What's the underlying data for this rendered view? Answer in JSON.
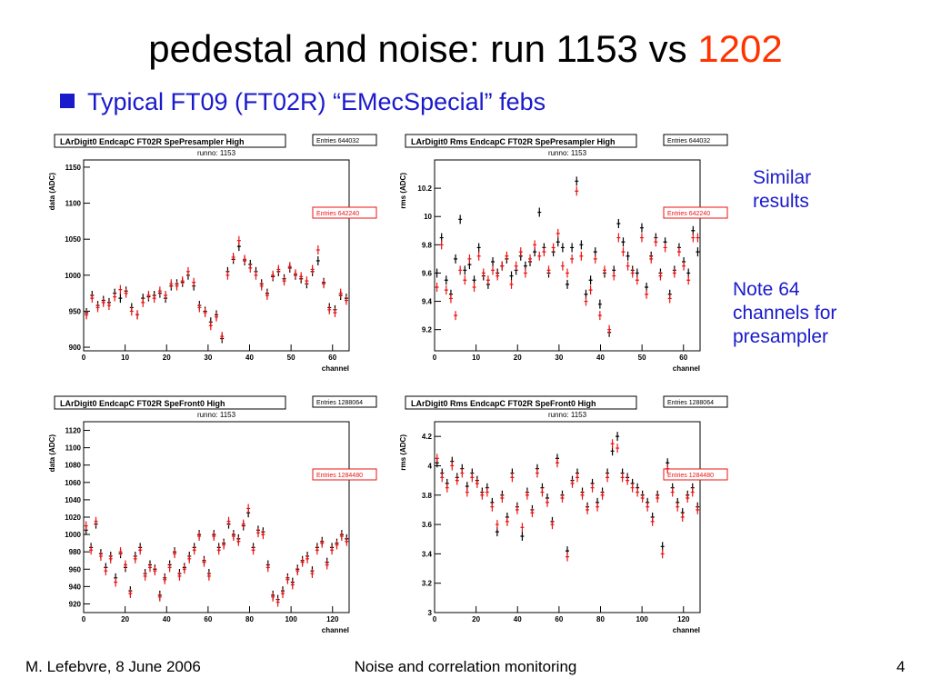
{
  "slide": {
    "title_main": "pedestal and noise: run 1153 vs",
    "title_highlight": "1202",
    "bullet": "Typical FT09 (FT02R) “EMecSpecial” febs",
    "note1_line1": "Similar",
    "note1_line2": "results",
    "note2_line1": "Note 64",
    "note2_line2": "channels for",
    "note2_line3": "presampler",
    "footer_left": "M. Lefebvre, 8 June 2006",
    "footer_center": "Noise and correlation monitoring",
    "footer_right": "4"
  },
  "colors": {
    "title_highlight": "#ff3300",
    "bullet": "#1a1acc",
    "series_1153": "#000000",
    "series_1202": "#ee1111"
  },
  "chart_data": [
    {
      "type": "scatter",
      "title": "LArDigit0 EndcapC FT02R SpePresampler High",
      "subtitle": "runno: 1153",
      "entries_black": "Entries  644032",
      "entries_red": "Entries  642240",
      "xlabel": "channel",
      "ylabel": "data (ADC)",
      "xlim": [
        0,
        64
      ],
      "ylim": [
        895,
        1160
      ],
      "xticks": [
        0,
        10,
        20,
        30,
        40,
        50,
        60
      ],
      "yticks": [
        900,
        950,
        1000,
        1050,
        1100,
        1150
      ],
      "series": [
        {
          "values": [
            948,
            972,
            958,
            965,
            962,
            975,
            968,
            978,
            955,
            945,
            968,
            970,
            972,
            975,
            968,
            985,
            988,
            990,
            1000,
            985,
            958,
            950,
            935,
            945,
            912,
            1005,
            1022,
            1040,
            1020,
            1015,
            1005,
            988,
            975,
            998,
            1005,
            995,
            1010,
            1000,
            995,
            988,
            1005,
            1020,
            990,
            955,
            952,
            972,
            968
          ]
        },
        {
          "values": [
            945,
            968,
            955,
            962,
            958,
            970,
            980,
            975,
            950,
            945,
            962,
            972,
            968,
            978,
            972,
            988,
            985,
            992,
            1005,
            990,
            955,
            948,
            930,
            942,
            915,
            1000,
            1025,
            1048,
            1022,
            1010,
            1000,
            985,
            972,
            1000,
            1008,
            992,
            1012,
            1002,
            998,
            992,
            1008,
            1035,
            988,
            952,
            948,
            975,
            965
          ]
        }
      ]
    },
    {
      "type": "scatter",
      "title": "LArDigit0 Rms EndcapC FT02R SpePresampler High",
      "subtitle": "runno: 1153",
      "entries_black": "Entries  644032",
      "entries_red": "Entries  642240",
      "xlabel": "channel",
      "ylabel": "rms (ADC)",
      "xlim": [
        0,
        64
      ],
      "ylim": [
        9.05,
        10.4
      ],
      "xticks": [
        0,
        10,
        20,
        30,
        40,
        50,
        60
      ],
      "yticks": [
        9.2,
        9.4,
        9.6,
        9.8,
        10,
        10.2
      ],
      "series": [
        {
          "values": [
            9.6,
            9.85,
            9.55,
            9.45,
            9.7,
            9.98,
            9.62,
            9.66,
            9.55,
            9.78,
            9.58,
            9.52,
            9.68,
            9.6,
            9.65,
            9.7,
            9.58,
            9.62,
            9.72,
            9.65,
            9.68,
            9.75,
            10.03,
            9.78,
            9.6,
            9.75,
            9.82,
            9.78,
            9.52,
            9.78,
            10.25,
            9.8,
            9.45,
            9.55,
            9.75,
            9.38,
            9.6,
            9.18,
            9.62,
            9.95,
            9.82,
            9.72,
            9.62,
            9.6,
            9.92,
            9.5,
            9.72,
            9.85,
            9.6,
            9.82,
            9.45,
            9.62,
            9.78,
            9.68,
            9.6,
            9.9,
            9.75
          ]
        },
        {
          "values": [
            9.5,
            9.8,
            9.48,
            9.42,
            9.3,
            9.62,
            9.55,
            9.7,
            9.5,
            9.72,
            9.6,
            9.55,
            9.62,
            9.58,
            9.65,
            9.72,
            9.52,
            9.65,
            9.75,
            9.6,
            9.7,
            9.8,
            9.72,
            9.75,
            9.62,
            9.78,
            9.88,
            9.65,
            9.6,
            9.7,
            10.18,
            9.72,
            9.4,
            9.48,
            9.7,
            9.3,
            9.62,
            9.2,
            9.58,
            9.85,
            9.75,
            9.65,
            9.6,
            9.55,
            9.85,
            9.45,
            9.7,
            9.82,
            9.58,
            9.78,
            9.42,
            9.6,
            9.75,
            9.65,
            9.55,
            9.85,
            9.85
          ]
        }
      ]
    },
    {
      "type": "scatter",
      "title": "LArDigit0 EndcapC FT02R SpeFront0 High",
      "subtitle": "runno: 1153",
      "entries_black": "Entries    1288064",
      "entries_red": "Entries    1284480",
      "xlabel": "channel",
      "ylabel": "data (ADC)",
      "xlim": [
        0,
        128
      ],
      "ylim": [
        910,
        1130
      ],
      "xticks": [
        0,
        20,
        40,
        60,
        80,
        100,
        120
      ],
      "yticks": [
        920,
        940,
        960,
        980,
        1000,
        1020,
        1040,
        1060,
        1080,
        1100,
        1120
      ],
      "series": [
        {
          "values": [
            1005,
            985,
            1012,
            978,
            962,
            975,
            950,
            978,
            962,
            935,
            975,
            985,
            955,
            965,
            960,
            930,
            950,
            965,
            980,
            955,
            962,
            975,
            985,
            1000,
            970,
            955,
            1000,
            985,
            990,
            1012,
            1000,
            995,
            1010,
            1025,
            985,
            1005,
            1003,
            965,
            930,
            925,
            935,
            950,
            945,
            960,
            970,
            975,
            958,
            985,
            992,
            968,
            985,
            990,
            1000,
            995
          ]
        },
        {
          "values": [
            1010,
            982,
            1015,
            975,
            958,
            972,
            945,
            980,
            965,
            932,
            972,
            982,
            952,
            962,
            958,
            928,
            948,
            962,
            978,
            952,
            960,
            972,
            982,
            998,
            968,
            952,
            998,
            982,
            988,
            1015,
            998,
            992,
            1012,
            1030,
            982,
            1002,
            1000,
            962,
            928,
            922,
            932,
            948,
            942,
            958,
            968,
            972,
            955,
            982,
            990,
            965,
            982,
            988,
            998,
            992
          ]
        }
      ]
    },
    {
      "type": "scatter",
      "title": "LArDigit0 Rms EndcapC FT02R SpeFront0 High",
      "subtitle": "runno: 1153",
      "entries_black": "Entries    1288064",
      "entries_red": "Entries    1284480",
      "xlabel": "channel",
      "ylabel": "rms (ADC)",
      "xlim": [
        0,
        128
      ],
      "ylim": [
        3,
        4.3
      ],
      "xticks": [
        0,
        20,
        40,
        60,
        80,
        100,
        120
      ],
      "yticks": [
        3,
        3.2,
        3.4,
        3.6,
        3.8,
        4,
        4.2
      ],
      "series": [
        {
          "values": [
            4.02,
            3.95,
            3.88,
            4.03,
            3.92,
            3.98,
            3.86,
            3.95,
            3.9,
            3.82,
            3.85,
            3.75,
            3.55,
            3.8,
            3.65,
            3.95,
            3.72,
            3.52,
            3.82,
            3.7,
            3.98,
            3.85,
            3.78,
            3.62,
            4.05,
            3.8,
            3.42,
            3.9,
            3.95,
            3.82,
            3.72,
            3.88,
            3.75,
            3.82,
            3.95,
            4.1,
            4.2,
            3.95,
            3.92,
            3.88,
            3.85,
            3.8,
            3.75,
            3.65,
            3.8,
            3.45,
            4.02,
            3.85,
            3.75,
            3.68,
            3.8,
            3.85,
            3.72
          ]
        },
        {
          "values": [
            4.05,
            3.92,
            3.85,
            4.0,
            3.9,
            3.95,
            3.82,
            3.92,
            3.88,
            3.8,
            3.82,
            3.72,
            3.6,
            3.78,
            3.62,
            3.92,
            3.7,
            3.58,
            3.8,
            3.68,
            3.95,
            3.82,
            3.75,
            3.6,
            4.02,
            3.78,
            3.38,
            3.88,
            3.92,
            3.8,
            3.7,
            3.85,
            3.72,
            3.8,
            3.92,
            4.15,
            4.12,
            3.92,
            3.9,
            3.85,
            3.82,
            3.78,
            3.72,
            3.62,
            3.78,
            3.4,
            3.98,
            3.82,
            3.72,
            3.65,
            3.78,
            3.82,
            3.7
          ]
        }
      ]
    }
  ]
}
